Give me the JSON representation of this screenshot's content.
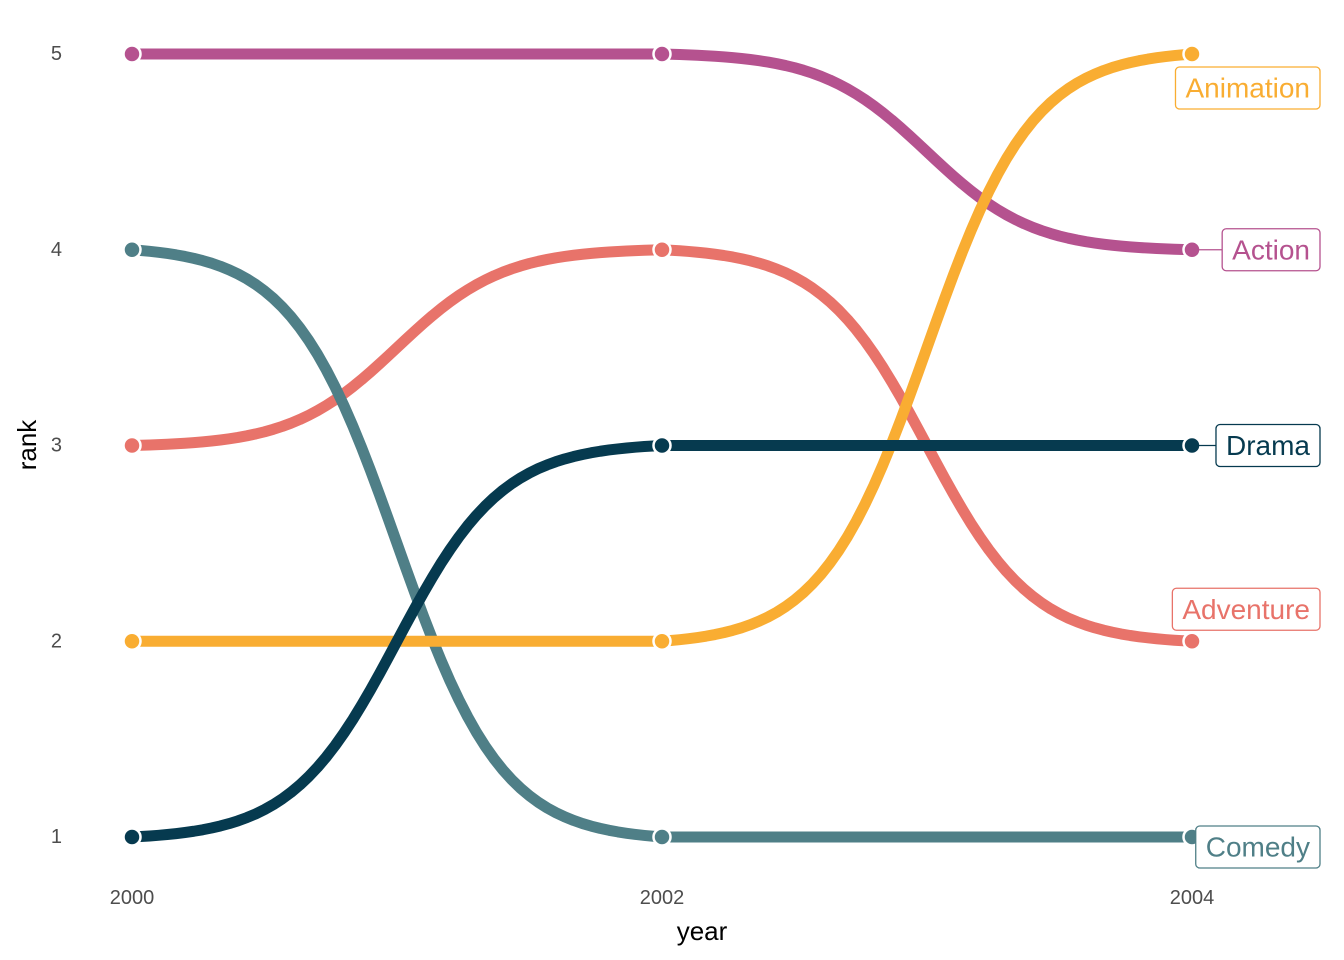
{
  "chart_data": {
    "type": "line",
    "xlabel": "year",
    "ylabel": "rank",
    "x": [
      2000,
      2002,
      2004
    ],
    "x_ticks": [
      "2000",
      "2002",
      "2004"
    ],
    "y_ticks": [
      "1",
      "2",
      "3",
      "4",
      "5"
    ],
    "xlim": [
      2000,
      2004
    ],
    "ylim": [
      1,
      5
    ],
    "grid": false,
    "curve": "sigmoid",
    "legend": "direct labels at right end of lines",
    "series": [
      {
        "name": "Action",
        "color": "#b5528f",
        "values": [
          5,
          5,
          4
        ]
      },
      {
        "name": "Adventure",
        "color": "#e8736a",
        "values": [
          3,
          4,
          2
        ]
      },
      {
        "name": "Animation",
        "color": "#f9ad32",
        "values": [
          2,
          2,
          5
        ]
      },
      {
        "name": "Comedy",
        "color": "#4f7f87",
        "values": [
          4,
          1,
          1
        ]
      },
      {
        "name": "Drama",
        "color": "#063a4f",
        "values": [
          1,
          3,
          3
        ]
      }
    ]
  }
}
